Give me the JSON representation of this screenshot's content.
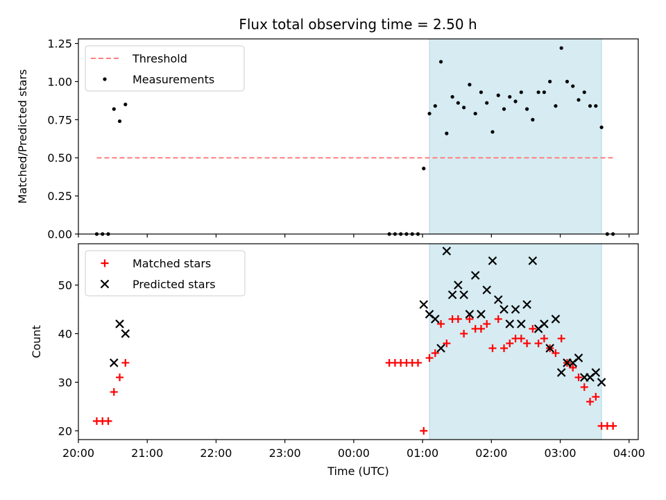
{
  "chart_data": [
    {
      "type": "scatter",
      "title": "Flux total observing time = 2.50 h",
      "xlabel": "",
      "ylabel": "Matched/Predicted stars",
      "xlim": [
        "20:00",
        "04:08"
      ],
      "ylim": [
        0,
        1.28
      ],
      "x_ticks": [
        "20:00",
        "21:00",
        "22:00",
        "23:00",
        "00:00",
        "01:00",
        "02:00",
        "03:00",
        "04:00"
      ],
      "y_ticks": [
        "0.00",
        "0.25",
        "0.50",
        "0.75",
        "1.00",
        "1.25"
      ],
      "grid": false,
      "legend": "upper-left",
      "shaded_interval": {
        "start": "01:06",
        "end": "03:36",
        "color": "#add8e6"
      },
      "series": [
        {
          "name": "Threshold",
          "kind": "dashed-line",
          "color": "#ff7f7f",
          "points": [
            [
              "20:16",
              0.5
            ],
            [
              "03:47",
              0.5
            ]
          ]
        },
        {
          "name": "Measurements",
          "kind": "dot",
          "color": "#000000",
          "points": [
            [
              "20:16",
              0.0
            ],
            [
              "20:21",
              0.0
            ],
            [
              "20:26",
              0.0
            ],
            [
              "20:31",
              0.82
            ],
            [
              "20:36",
              0.74
            ],
            [
              "20:41",
              0.85
            ],
            [
              "00:31",
              0.0
            ],
            [
              "00:36",
              0.0
            ],
            [
              "00:41",
              0.0
            ],
            [
              "00:46",
              0.0
            ],
            [
              "00:51",
              0.0
            ],
            [
              "00:56",
              0.0
            ],
            [
              "01:01",
              0.43
            ],
            [
              "01:06",
              0.79
            ],
            [
              "01:11",
              0.84
            ],
            [
              "01:16",
              1.13
            ],
            [
              "01:21",
              0.66
            ],
            [
              "01:26",
              0.9
            ],
            [
              "01:31",
              0.86
            ],
            [
              "01:36",
              0.83
            ],
            [
              "01:41",
              0.98
            ],
            [
              "01:46",
              0.79
            ],
            [
              "01:51",
              0.93
            ],
            [
              "01:56",
              0.86
            ],
            [
              "02:01",
              0.67
            ],
            [
              "02:06",
              0.91
            ],
            [
              "02:11",
              0.82
            ],
            [
              "02:16",
              0.9
            ],
            [
              "02:21",
              0.87
            ],
            [
              "02:26",
              0.93
            ],
            [
              "02:31",
              0.82
            ],
            [
              "02:36",
              0.75
            ],
            [
              "02:41",
              0.93
            ],
            [
              "02:46",
              0.93
            ],
            [
              "02:51",
              1.0
            ],
            [
              "02:56",
              0.84
            ],
            [
              "03:01",
              1.22
            ],
            [
              "03:06",
              1.0
            ],
            [
              "03:11",
              0.97
            ],
            [
              "03:16",
              0.88
            ],
            [
              "03:21",
              0.93
            ],
            [
              "03:26",
              0.84
            ],
            [
              "03:31",
              0.84
            ],
            [
              "03:36",
              0.7
            ],
            [
              "03:41",
              0.0
            ],
            [
              "03:46",
              0.0
            ]
          ]
        }
      ]
    },
    {
      "type": "scatter",
      "title": "",
      "xlabel": "Time (UTC)",
      "ylabel": "Count",
      "xlim": [
        "20:00",
        "04:08"
      ],
      "ylim": [
        18.2,
        58.5
      ],
      "x_ticks": [
        "20:00",
        "21:00",
        "22:00",
        "23:00",
        "00:00",
        "01:00",
        "02:00",
        "03:00",
        "04:00"
      ],
      "y_ticks": [
        "20",
        "30",
        "40",
        "50"
      ],
      "grid": false,
      "legend": "upper-left",
      "shaded_interval": {
        "start": "01:06",
        "end": "03:36",
        "color": "#add8e6"
      },
      "series": [
        {
          "name": "Matched stars",
          "kind": "plus",
          "color": "#ff0000",
          "points": [
            [
              "20:16",
              22
            ],
            [
              "20:21",
              22
            ],
            [
              "20:26",
              22
            ],
            [
              "20:31",
              28
            ],
            [
              "20:36",
              31
            ],
            [
              "20:41",
              34
            ],
            [
              "00:31",
              34
            ],
            [
              "00:36",
              34
            ],
            [
              "00:41",
              34
            ],
            [
              "00:46",
              34
            ],
            [
              "00:51",
              34
            ],
            [
              "00:56",
              34
            ],
            [
              "01:01",
              20
            ],
            [
              "01:06",
              35
            ],
            [
              "01:11",
              36
            ],
            [
              "01:16",
              42
            ],
            [
              "01:21",
              38
            ],
            [
              "01:26",
              43
            ],
            [
              "01:31",
              43
            ],
            [
              "01:36",
              40
            ],
            [
              "01:41",
              43
            ],
            [
              "01:46",
              41
            ],
            [
              "01:51",
              41
            ],
            [
              "01:56",
              42
            ],
            [
              "02:01",
              37
            ],
            [
              "02:06",
              43
            ],
            [
              "02:11",
              37
            ],
            [
              "02:16",
              38
            ],
            [
              "02:21",
              39
            ],
            [
              "02:26",
              39
            ],
            [
              "02:31",
              38
            ],
            [
              "02:36",
              41
            ],
            [
              "02:41",
              38
            ],
            [
              "02:46",
              39
            ],
            [
              "02:51",
              37
            ],
            [
              "02:56",
              36
            ],
            [
              "03:01",
              39
            ],
            [
              "03:06",
              34
            ],
            [
              "03:11",
              33
            ],
            [
              "03:16",
              31
            ],
            [
              "03:21",
              29
            ],
            [
              "03:26",
              26
            ],
            [
              "03:31",
              27
            ],
            [
              "03:36",
              21
            ],
            [
              "03:41",
              21
            ],
            [
              "03:46",
              21
            ]
          ]
        },
        {
          "name": "Predicted stars",
          "kind": "x",
          "color": "#000000",
          "points": [
            [
              "20:31",
              34
            ],
            [
              "20:36",
              42
            ],
            [
              "20:41",
              40
            ],
            [
              "01:01",
              46
            ],
            [
              "01:06",
              44
            ],
            [
              "01:11",
              43
            ],
            [
              "01:16",
              37
            ],
            [
              "01:21",
              57
            ],
            [
              "01:26",
              48
            ],
            [
              "01:31",
              50
            ],
            [
              "01:36",
              48
            ],
            [
              "01:41",
              44
            ],
            [
              "01:46",
              52
            ],
            [
              "01:51",
              44
            ],
            [
              "01:56",
              49
            ],
            [
              "02:01",
              55
            ],
            [
              "02:06",
              47
            ],
            [
              "02:11",
              45
            ],
            [
              "02:16",
              42
            ],
            [
              "02:21",
              45
            ],
            [
              "02:26",
              42
            ],
            [
              "02:31",
              46
            ],
            [
              "02:36",
              55
            ],
            [
              "02:41",
              41
            ],
            [
              "02:46",
              42
            ],
            [
              "02:51",
              37
            ],
            [
              "02:56",
              43
            ],
            [
              "03:01",
              32
            ],
            [
              "03:06",
              34
            ],
            [
              "03:11",
              34
            ],
            [
              "03:16",
              35
            ],
            [
              "03:21",
              31
            ],
            [
              "03:26",
              31
            ],
            [
              "03:31",
              32
            ],
            [
              "03:36",
              30
            ]
          ]
        }
      ]
    }
  ]
}
